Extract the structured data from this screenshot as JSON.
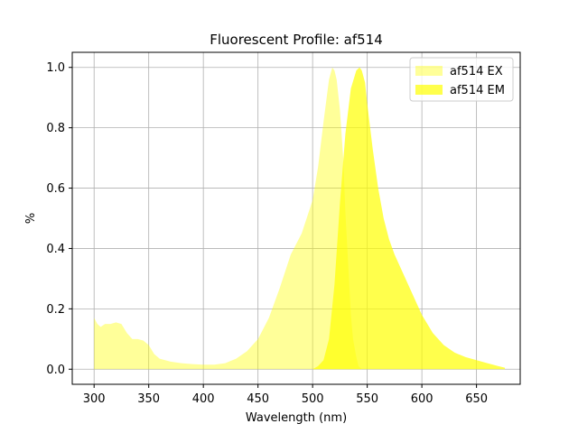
{
  "chart_data": {
    "type": "area",
    "title": "Fluorescent Profile: af514",
    "xlabel": "Wavelength (nm)",
    "ylabel": "%",
    "xlim": [
      280,
      690
    ],
    "ylim": [
      -0.05,
      1.05
    ],
    "xticks": [
      300,
      350,
      400,
      450,
      500,
      550,
      600,
      650
    ],
    "yticks": [
      0.0,
      0.2,
      0.4,
      0.6,
      0.8,
      1.0
    ],
    "grid": true,
    "legend_position": "top-right",
    "series": [
      {
        "name": "af514 EX",
        "color": "#ffff00",
        "opacity": 0.4,
        "x": [
          300,
          303,
          306,
          310,
          315,
          320,
          325,
          330,
          335,
          340,
          345,
          350,
          355,
          360,
          370,
          380,
          390,
          400,
          410,
          420,
          430,
          440,
          450,
          460,
          470,
          480,
          490,
          500,
          505,
          510,
          515,
          518,
          520,
          522,
          525,
          528,
          530,
          533,
          535,
          537,
          540,
          542,
          545
        ],
        "values": [
          0.17,
          0.15,
          0.14,
          0.15,
          0.15,
          0.155,
          0.15,
          0.12,
          0.1,
          0.1,
          0.095,
          0.08,
          0.05,
          0.035,
          0.025,
          0.02,
          0.017,
          0.015,
          0.015,
          0.02,
          0.035,
          0.06,
          0.1,
          0.17,
          0.27,
          0.38,
          0.45,
          0.56,
          0.67,
          0.82,
          0.96,
          1.0,
          0.99,
          0.96,
          0.86,
          0.7,
          0.52,
          0.32,
          0.18,
          0.1,
          0.04,
          0.01,
          0.0
        ]
      },
      {
        "name": "af514 EM",
        "color": "#ffff00",
        "opacity": 0.7,
        "x": [
          482,
          500,
          505,
          510,
          515,
          520,
          525,
          530,
          535,
          540,
          543,
          545,
          548,
          550,
          555,
          560,
          565,
          570,
          575,
          580,
          590,
          600,
          610,
          620,
          630,
          640,
          650,
          660,
          670,
          676
        ],
        "values": [
          0.0,
          0.0,
          0.01,
          0.03,
          0.1,
          0.28,
          0.55,
          0.78,
          0.93,
          0.99,
          1.0,
          0.99,
          0.95,
          0.88,
          0.73,
          0.6,
          0.5,
          0.43,
          0.38,
          0.34,
          0.26,
          0.18,
          0.12,
          0.08,
          0.055,
          0.04,
          0.03,
          0.02,
          0.01,
          0.005
        ]
      }
    ]
  }
}
